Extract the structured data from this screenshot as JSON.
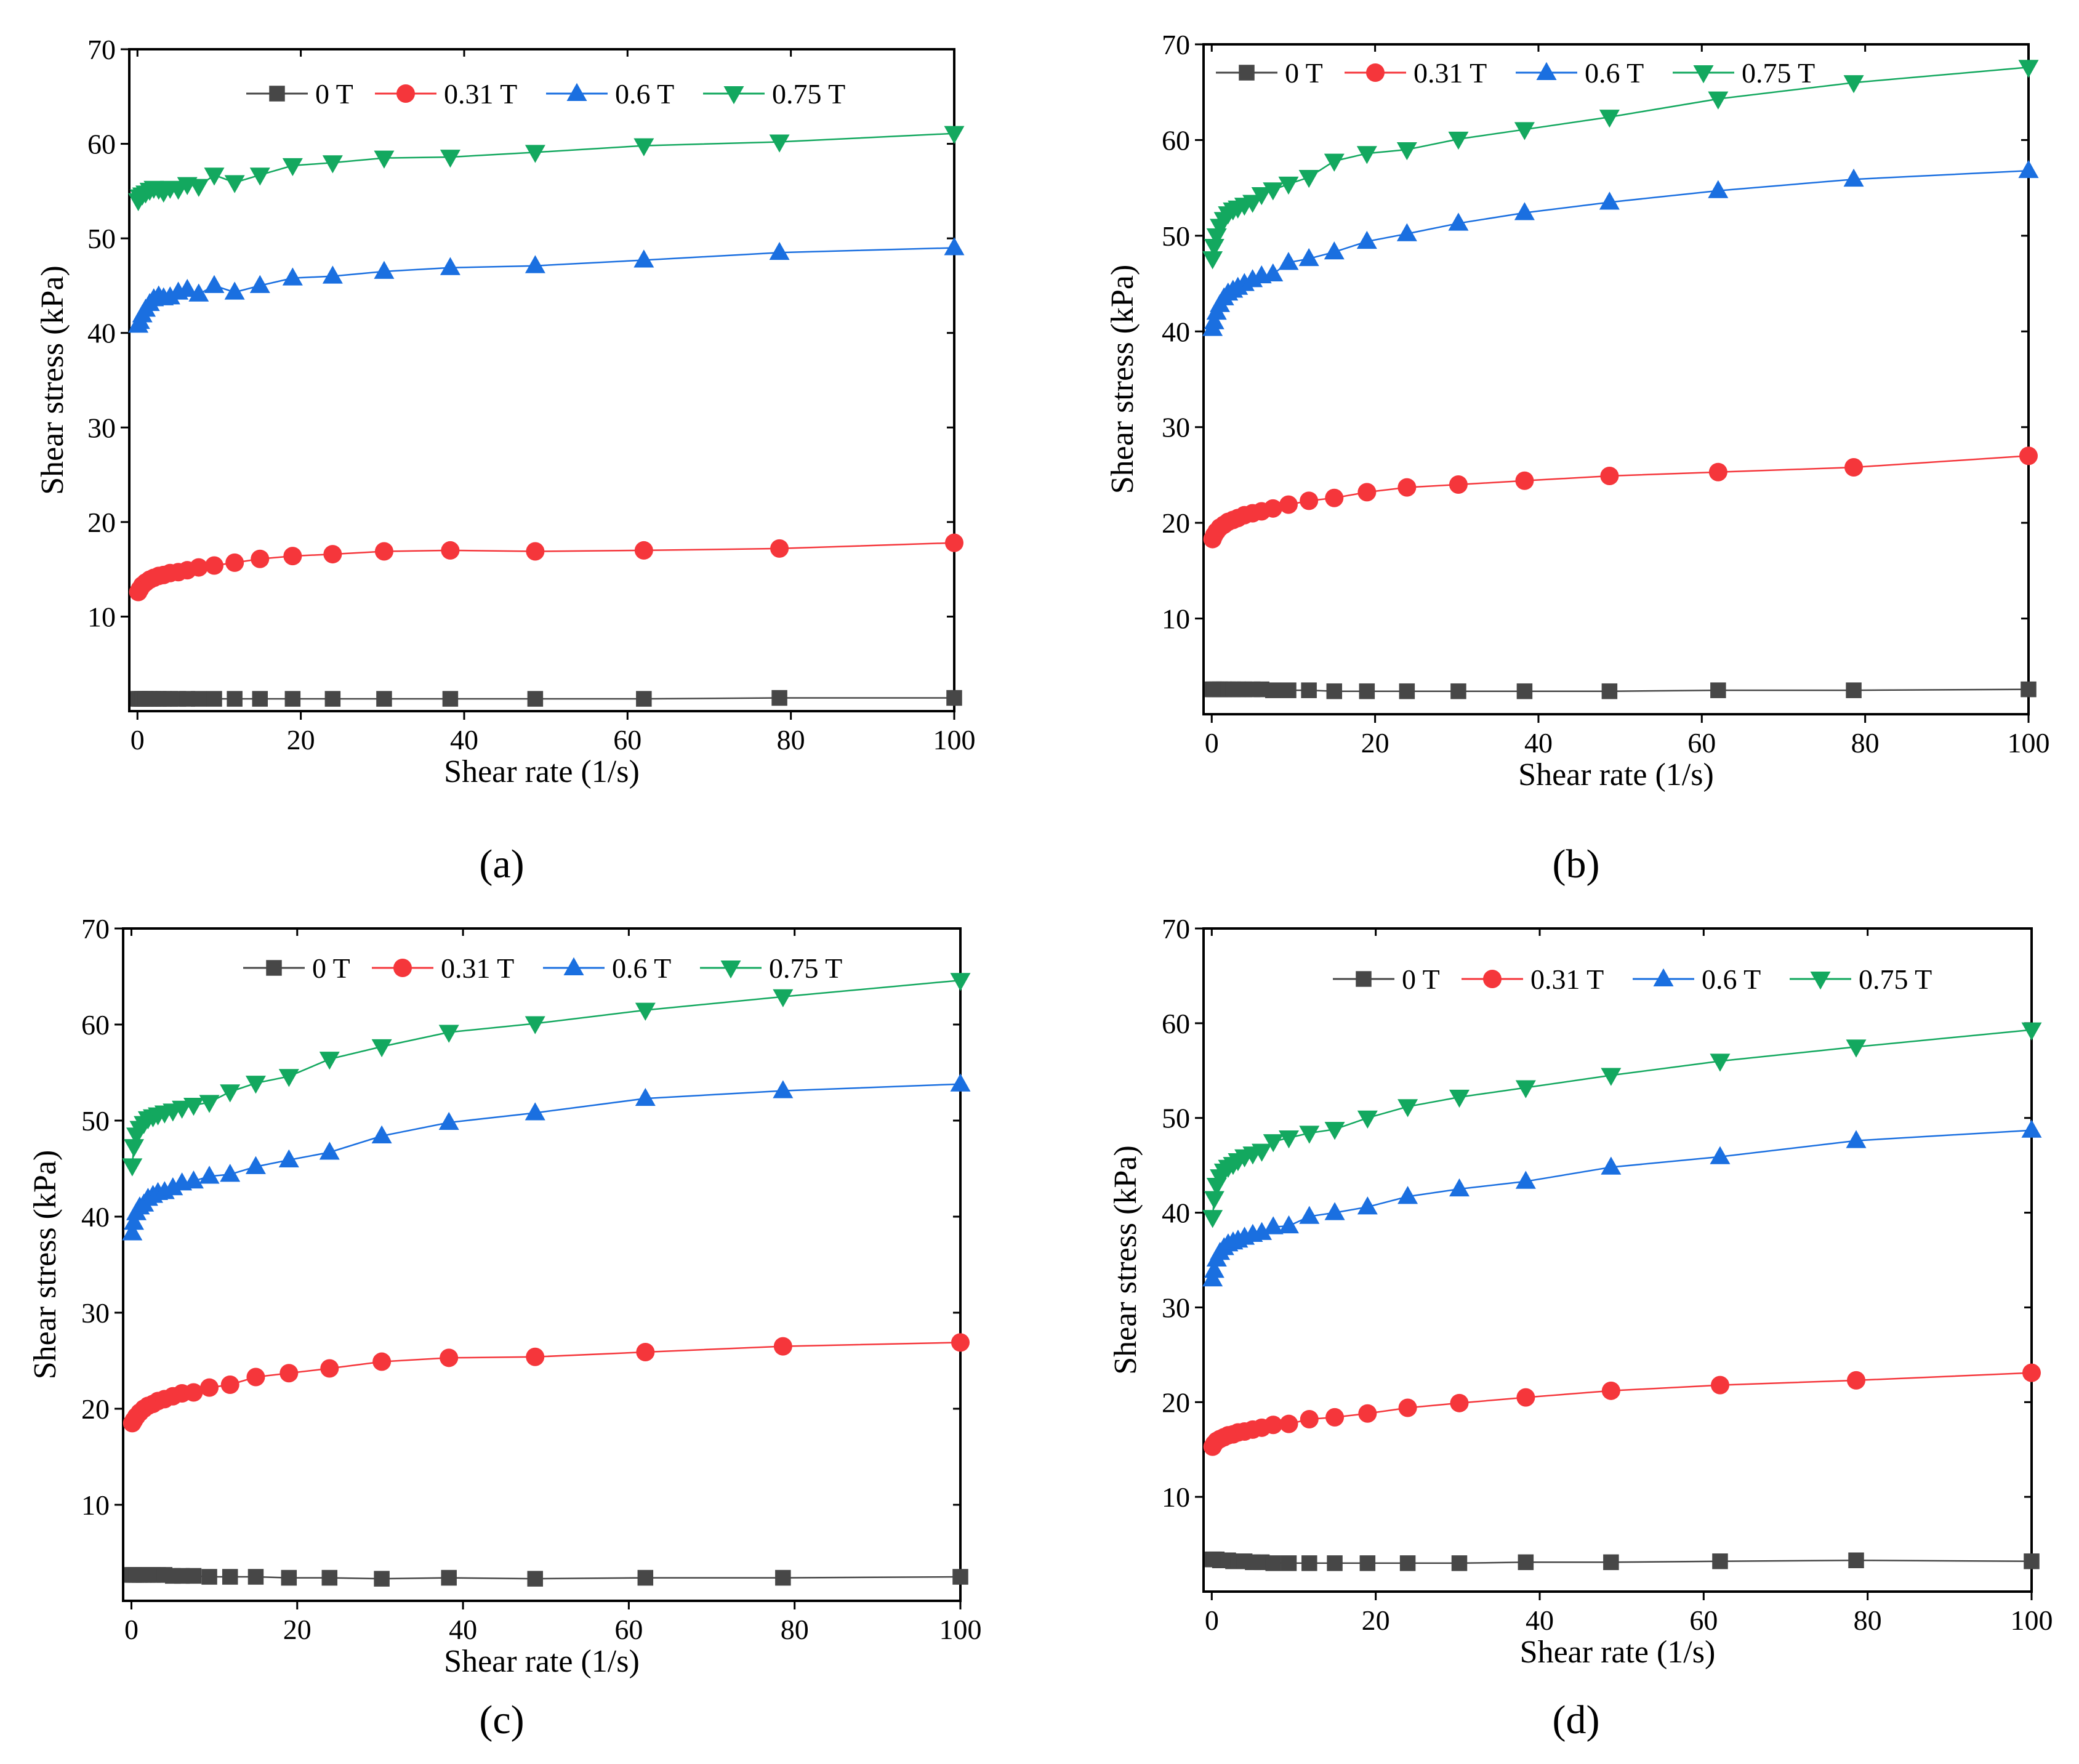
{
  "figure": {
    "panels": [
      "(a)",
      "(b)",
      "(c)",
      "(d)"
    ]
  },
  "series_style": [
    {
      "name": "0 T",
      "color": "#474747",
      "marker": "square"
    },
    {
      "name": "0.31 T",
      "color": "#f5363b",
      "marker": "circle"
    },
    {
      "name": "0.6 T",
      "color": "#1a6fe0",
      "marker": "triangle-up"
    },
    {
      "name": "0.75 T",
      "color": "#13a85f",
      "marker": "triangle-down"
    }
  ],
  "chart_data": [
    {
      "type": "line",
      "panel_label": "a",
      "xlabel": "Shear rate (1/s)",
      "ylabel": "Shear stress (kPa)",
      "xlim": [
        -1,
        100
      ],
      "ylim": [
        0,
        70
      ],
      "xticks": [
        0,
        20,
        40,
        60,
        80,
        100
      ],
      "yticks": [
        10,
        20,
        30,
        40,
        50,
        60,
        70
      ],
      "legend_position": "top",
      "x": [
        0.1,
        0.3,
        0.6,
        1.0,
        1.5,
        2.0,
        2.6,
        3.2,
        4.0,
        5.0,
        6.1,
        7.5,
        9.4,
        11.9,
        15.0,
        19.0,
        23.9,
        30.2,
        38.3,
        48.7,
        62.0,
        78.6,
        100
      ],
      "series": [
        {
          "name": "0 T",
          "values": [
            1.3,
            1.3,
            1.3,
            1.3,
            1.3,
            1.3,
            1.3,
            1.3,
            1.3,
            1.3,
            1.3,
            1.3,
            1.3,
            1.3,
            1.3,
            1.3,
            1.3,
            1.3,
            1.3,
            1.3,
            1.3,
            1.4,
            1.4
          ]
        },
        {
          "name": "0.31 T",
          "values": [
            12.6,
            12.9,
            13.3,
            13.6,
            13.9,
            14.1,
            14.3,
            14.4,
            14.6,
            14.7,
            14.9,
            15.2,
            15.4,
            15.7,
            16.1,
            16.4,
            16.6,
            16.9,
            17.0,
            16.9,
            17.0,
            17.2,
            17.8
          ]
        },
        {
          "name": "0.6 T",
          "values": [
            40.8,
            41.2,
            41.9,
            42.5,
            43.1,
            43.6,
            43.9,
            43.7,
            43.8,
            44.3,
            44.6,
            44.1,
            45.0,
            44.3,
            45.0,
            45.8,
            46.0,
            46.5,
            46.9,
            47.1,
            47.7,
            48.5,
            49.0
          ]
        },
        {
          "name": "0.75 T",
          "values": [
            54.0,
            54.4,
            54.6,
            54.8,
            55.1,
            55.3,
            55.2,
            54.9,
            55.3,
            55.2,
            55.7,
            55.5,
            56.7,
            55.9,
            56.7,
            57.7,
            58.0,
            58.5,
            58.6,
            59.1,
            59.8,
            60.2,
            61.1
          ]
        }
      ]
    },
    {
      "type": "line",
      "panel_label": "b",
      "xlabel": "Shear rate (1/s)",
      "ylabel": "Shear stress (kPa)",
      "xlim": [
        -1,
        100
      ],
      "ylim": [
        0,
        70
      ],
      "xticks": [
        0,
        20,
        40,
        60,
        80,
        100
      ],
      "yticks": [
        10,
        20,
        30,
        40,
        50,
        60,
        70
      ],
      "legend_position": "top",
      "x": [
        0.1,
        0.3,
        0.6,
        1.0,
        1.5,
        2.0,
        2.6,
        3.2,
        4.0,
        5.0,
        6.1,
        7.5,
        9.4,
        11.9,
        15.0,
        19.0,
        23.9,
        30.2,
        38.3,
        48.7,
        62.0,
        78.6,
        100
      ],
      "series": [
        {
          "name": "0 T",
          "values": [
            2.6,
            2.6,
            2.6,
            2.6,
            2.6,
            2.6,
            2.6,
            2.6,
            2.6,
            2.6,
            2.6,
            2.5,
            2.5,
            2.5,
            2.4,
            2.4,
            2.4,
            2.4,
            2.4,
            2.4,
            2.5,
            2.5,
            2.6
          ]
        },
        {
          "name": "0.31 T",
          "values": [
            18.3,
            18.7,
            19.1,
            19.5,
            19.8,
            20.1,
            20.3,
            20.5,
            20.8,
            21.0,
            21.2,
            21.5,
            21.9,
            22.3,
            22.6,
            23.2,
            23.7,
            24.0,
            24.4,
            24.9,
            25.3,
            25.8,
            27.0
          ]
        },
        {
          "name": "0.6 T",
          "values": [
            40.3,
            41.0,
            42.0,
            42.8,
            43.5,
            44.0,
            44.3,
            44.6,
            45.0,
            45.4,
            45.8,
            46.0,
            47.2,
            47.6,
            48.3,
            49.4,
            50.2,
            51.3,
            52.4,
            53.5,
            54.7,
            55.9,
            56.8
          ]
        },
        {
          "name": "0.75 T",
          "values": [
            47.6,
            48.9,
            50.0,
            51.0,
            51.7,
            52.3,
            52.7,
            52.9,
            53.2,
            53.5,
            54.3,
            54.8,
            55.4,
            56.1,
            57.8,
            58.6,
            59.0,
            60.1,
            61.1,
            62.4,
            64.3,
            66.0,
            67.6
          ]
        }
      ]
    },
    {
      "type": "line",
      "panel_label": "c",
      "xlabel": "Shear rate (1/s)",
      "ylabel": "Shear stress (kPa)",
      "xlim": [
        -1,
        100
      ],
      "ylim": [
        0,
        70
      ],
      "xticks": [
        0,
        20,
        40,
        60,
        80,
        100
      ],
      "yticks": [
        10,
        20,
        30,
        40,
        50,
        60,
        70
      ],
      "legend_position": "top",
      "x": [
        0.1,
        0.3,
        0.6,
        1.0,
        1.5,
        2.0,
        2.6,
        3.2,
        4.0,
        5.0,
        6.1,
        7.5,
        9.4,
        11.9,
        15.0,
        19.0,
        23.9,
        30.2,
        38.3,
        48.7,
        62.0,
        78.6,
        100
      ],
      "series": [
        {
          "name": "0 T",
          "values": [
            2.7,
            2.7,
            2.7,
            2.7,
            2.7,
            2.7,
            2.7,
            2.7,
            2.7,
            2.6,
            2.6,
            2.6,
            2.5,
            2.5,
            2.5,
            2.4,
            2.4,
            2.3,
            2.4,
            2.3,
            2.4,
            2.4,
            2.5
          ]
        },
        {
          "name": "0.31 T",
          "values": [
            18.5,
            18.8,
            19.2,
            19.6,
            20.0,
            20.3,
            20.5,
            20.8,
            21.0,
            21.3,
            21.6,
            21.7,
            22.2,
            22.5,
            23.3,
            23.7,
            24.2,
            24.9,
            25.3,
            25.4,
            25.9,
            26.5,
            26.9
          ]
        },
        {
          "name": "0.6 T",
          "values": [
            38.3,
            39.4,
            40.4,
            41.0,
            41.3,
            41.9,
            42.2,
            42.5,
            42.6,
            43.0,
            43.5,
            43.7,
            44.2,
            44.4,
            45.2,
            45.9,
            46.7,
            48.4,
            49.8,
            50.8,
            52.3,
            53.1,
            53.8
          ]
        },
        {
          "name": "0.75 T",
          "values": [
            45.3,
            47.3,
            48.5,
            49.2,
            49.7,
            50.2,
            50.4,
            50.6,
            50.8,
            51.0,
            51.3,
            51.6,
            51.9,
            53.0,
            53.9,
            54.6,
            56.4,
            57.7,
            59.2,
            60.1,
            61.5,
            62.9,
            64.6
          ]
        }
      ]
    },
    {
      "type": "line",
      "panel_label": "d",
      "xlabel": "Shear rate (1/s)",
      "ylabel": "Shear stress (kPa)",
      "xlim": [
        -1,
        100
      ],
      "ylim": [
        0,
        70
      ],
      "xticks": [
        0,
        20,
        40,
        60,
        80,
        100
      ],
      "yticks": [
        10,
        20,
        30,
        40,
        50,
        60,
        70
      ],
      "legend_position": "top",
      "x": [
        0.1,
        0.3,
        0.6,
        1.0,
        1.5,
        2.0,
        2.6,
        3.2,
        4.0,
        5.0,
        6.1,
        7.5,
        9.4,
        11.9,
        15.0,
        19.0,
        23.9,
        30.2,
        38.3,
        48.7,
        62.0,
        78.6,
        100
      ],
      "series": [
        {
          "name": "0 T",
          "values": [
            3.4,
            3.4,
            3.4,
            3.3,
            3.3,
            3.3,
            3.2,
            3.2,
            3.2,
            3.1,
            3.1,
            3.0,
            3.0,
            3.0,
            3.0,
            3.0,
            3.0,
            3.0,
            3.1,
            3.1,
            3.2,
            3.3,
            3.2
          ]
        },
        {
          "name": "0.31 T",
          "values": [
            15.3,
            15.6,
            15.9,
            16.1,
            16.3,
            16.5,
            16.6,
            16.8,
            16.9,
            17.1,
            17.3,
            17.6,
            17.7,
            18.2,
            18.4,
            18.8,
            19.4,
            19.9,
            20.5,
            21.2,
            21.8,
            22.3,
            23.1
          ]
        },
        {
          "name": "0.6 T",
          "values": [
            33.0,
            33.9,
            35.1,
            35.8,
            36.3,
            36.7,
            36.9,
            37.1,
            37.4,
            37.7,
            37.9,
            38.5,
            38.6,
            39.6,
            40.0,
            40.6,
            41.7,
            42.5,
            43.3,
            44.8,
            45.9,
            47.6,
            48.7
          ]
        },
        {
          "name": "0.75 T",
          "values": [
            39.5,
            41.5,
            42.9,
            43.8,
            44.4,
            44.8,
            45.1,
            45.5,
            45.9,
            46.2,
            46.5,
            47.5,
            47.9,
            48.4,
            48.8,
            50.0,
            51.2,
            52.2,
            53.2,
            54.5,
            56.0,
            57.5,
            59.3
          ]
        }
      ]
    }
  ]
}
